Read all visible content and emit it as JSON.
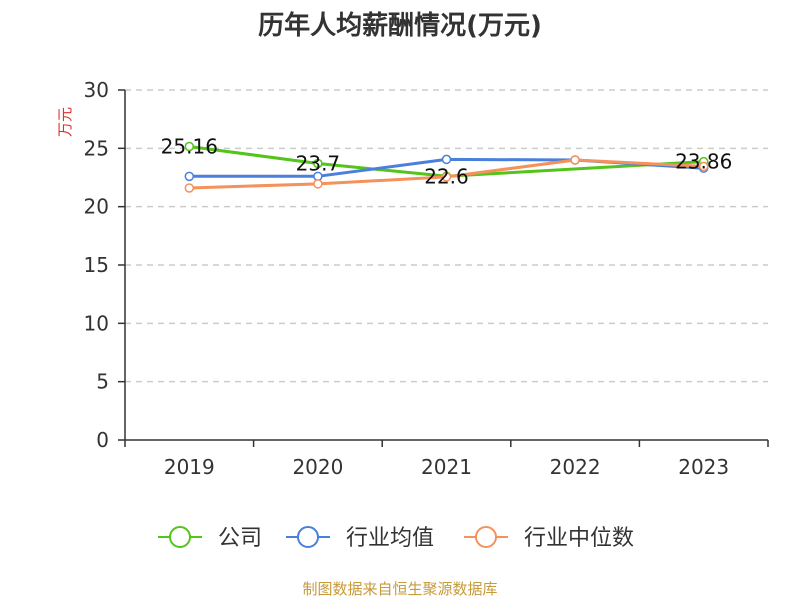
{
  "chart_data": {
    "type": "line",
    "title": "历年人均薪酬情况(万元)",
    "ylabel": "万元",
    "xlabel": "",
    "categories": [
      "2019",
      "2020",
      "2021",
      "2022",
      "2023"
    ],
    "ylim": [
      0,
      30
    ],
    "yticks": [
      0,
      5,
      10,
      15,
      20,
      25,
      30
    ],
    "grid": true,
    "legend_position": "bottom",
    "series": [
      {
        "name": "公司",
        "values": [
          25.16,
          23.7,
          22.6,
          null,
          23.86
        ],
        "color": "#52c41a",
        "labels": [
          "25.16",
          "23.7",
          "22.6",
          "",
          "23.86"
        ]
      },
      {
        "name": "行业均值",
        "values": [
          22.6,
          22.6,
          24.05,
          24.0,
          23.3
        ],
        "color": "#4a7fdb",
        "labels": [
          "",
          "",
          "",
          "",
          ""
        ]
      },
      {
        "name": "行业中位数",
        "values": [
          21.6,
          21.95,
          22.55,
          24.0,
          23.45
        ],
        "color": "#f5915a",
        "labels": [
          "",
          "",
          "",
          "",
          ""
        ]
      }
    ]
  },
  "source_text": "制图数据来自恒生聚源数据库"
}
